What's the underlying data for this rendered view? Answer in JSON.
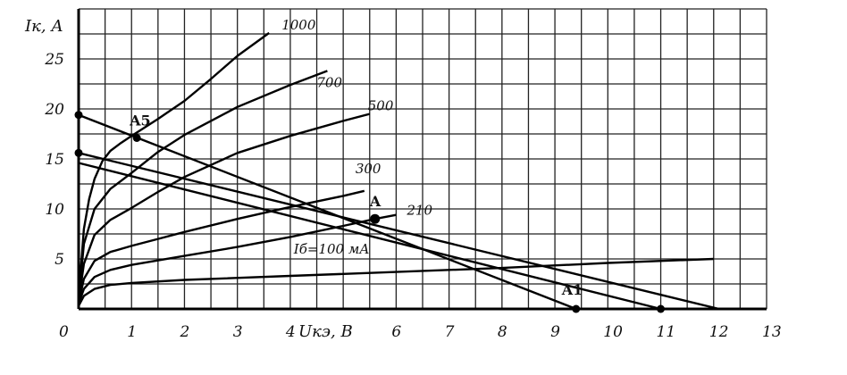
{
  "chart_data": {
    "type": "line",
    "title": "",
    "xlabel": "Uкэ, В",
    "ylabel": "Iк, А",
    "xlim": [
      0,
      13
    ],
    "ylim": [
      0,
      30
    ],
    "grid": true,
    "x_ticks": [
      "0",
      "1",
      "2",
      "3",
      "4",
      "5",
      "6",
      "7",
      "8",
      "9",
      "10",
      "11",
      "12",
      "13"
    ],
    "y_ticks": [
      "5",
      "10",
      "15",
      "20",
      "25"
    ],
    "series": [
      {
        "name": "100",
        "label": "Iб=100 мА",
        "x": [
          0,
          0.1,
          0.3,
          0.6,
          1,
          2,
          4,
          6,
          8,
          10,
          12
        ],
        "y": [
          0.3,
          1.3,
          2.0,
          2.4,
          2.6,
          2.9,
          3.3,
          3.7,
          4.1,
          4.6,
          5.0
        ]
      },
      {
        "name": "210",
        "label": "210",
        "x": [
          0,
          0.1,
          0.3,
          0.6,
          1,
          2,
          3,
          4,
          5,
          5.6,
          6
        ],
        "y": [
          0.5,
          2.0,
          3.2,
          3.9,
          4.4,
          5.3,
          6.2,
          7.2,
          8.3,
          9.0,
          9.4
        ]
      },
      {
        "name": "300",
        "label": "300",
        "x": [
          0,
          0.1,
          0.3,
          0.6,
          1,
          1.5,
          2,
          3,
          4,
          5,
          5.4
        ],
        "y": [
          0.6,
          3.0,
          4.8,
          5.7,
          6.3,
          7.0,
          7.7,
          9.0,
          10.2,
          11.3,
          11.8
        ]
      },
      {
        "name": "500",
        "label": "500",
        "x": [
          0,
          0.1,
          0.3,
          0.6,
          1,
          1.5,
          2,
          3,
          4,
          5,
          5.5
        ],
        "y": [
          0.8,
          4.5,
          7.4,
          8.9,
          10.1,
          11.7,
          13.2,
          15.6,
          17.3,
          18.8,
          19.5
        ]
      },
      {
        "name": "700",
        "label": "700",
        "x": [
          0,
          0.1,
          0.3,
          0.6,
          1,
          1.5,
          2,
          3,
          4,
          4.7
        ],
        "y": [
          1.0,
          6.5,
          10.0,
          12.0,
          13.6,
          15.7,
          17.4,
          20.2,
          22.4,
          23.8
        ]
      },
      {
        "name": "1000",
        "label": "1000",
        "x": [
          0,
          0.1,
          0.2,
          0.3,
          0.45,
          0.6,
          0.8,
          1,
          1.5,
          2,
          2.5,
          3,
          3.6
        ],
        "y": [
          1.2,
          8.0,
          11.0,
          13.0,
          14.8,
          15.8,
          16.6,
          17.3,
          19.0,
          20.8,
          23.0,
          25.3,
          27.6
        ]
      },
      {
        "name": "",
        "label": "",
        "x": [
          0,
          9.4
        ],
        "y": [
          19.4,
          0
        ]
      },
      {
        "name": "",
        "label": "",
        "x": [
          0,
          12.1
        ],
        "y": [
          15.6,
          0
        ]
      },
      {
        "name": "",
        "label": "",
        "x": [
          0,
          11.0
        ],
        "y": [
          14.6,
          0
        ]
      }
    ],
    "points": [
      {
        "label": "A5",
        "x": 1.1,
        "y": 17.1
      },
      {
        "label": "A",
        "x": 5.6,
        "y": 9.0
      },
      {
        "label": "A1",
        "x": 9.4,
        "y": 0
      },
      {
        "label": "",
        "x": 0,
        "y": 19.4
      },
      {
        "label": "",
        "x": 0,
        "y": 15.6
      },
      {
        "label": "",
        "x": 11.0,
        "y": 0
      }
    ]
  }
}
